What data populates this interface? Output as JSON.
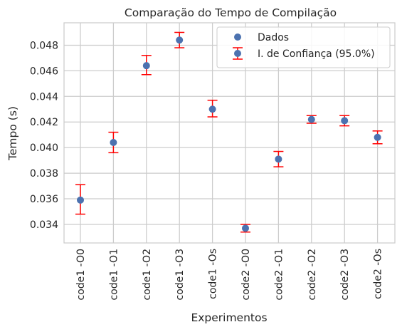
{
  "chart_data": {
    "type": "scatter",
    "title": "Comparação do Tempo de Compilação",
    "xlabel": "Experimentos",
    "ylabel": "Tempo (s)",
    "categories": [
      "code1 -O0",
      "code1 -O1",
      "code1 -O2",
      "code1 -O3",
      "code1 -Os",
      "code2 -O0",
      "code2 -O1",
      "code2 -O2",
      "code2 -O3",
      "code2 -Os"
    ],
    "series": [
      {
        "name": "Dados",
        "values": [
          0.0359,
          0.0404,
          0.0464,
          0.0484,
          0.043,
          0.0337,
          0.0391,
          0.0422,
          0.0421,
          0.0408
        ]
      },
      {
        "name": "I. de Confiança (95.0%)",
        "lower": [
          0.0348,
          0.0396,
          0.0457,
          0.0478,
          0.0424,
          0.0334,
          0.0385,
          0.0419,
          0.0417,
          0.0403
        ],
        "upper": [
          0.0371,
          0.0412,
          0.0472,
          0.049,
          0.0437,
          0.034,
          0.0397,
          0.0425,
          0.0425,
          0.0413
        ]
      }
    ],
    "yticks": [
      "0.034",
      "0.036",
      "0.038",
      "0.040",
      "0.042",
      "0.044",
      "0.046",
      "0.048"
    ],
    "ylim": [
      0.03255,
      0.04975
    ],
    "grid": true,
    "legend_position": "top-right",
    "colors": {
      "points": "#4c72b0",
      "errorbars": "#ff0000",
      "grid": "#cccccc",
      "text": "#262626"
    }
  }
}
